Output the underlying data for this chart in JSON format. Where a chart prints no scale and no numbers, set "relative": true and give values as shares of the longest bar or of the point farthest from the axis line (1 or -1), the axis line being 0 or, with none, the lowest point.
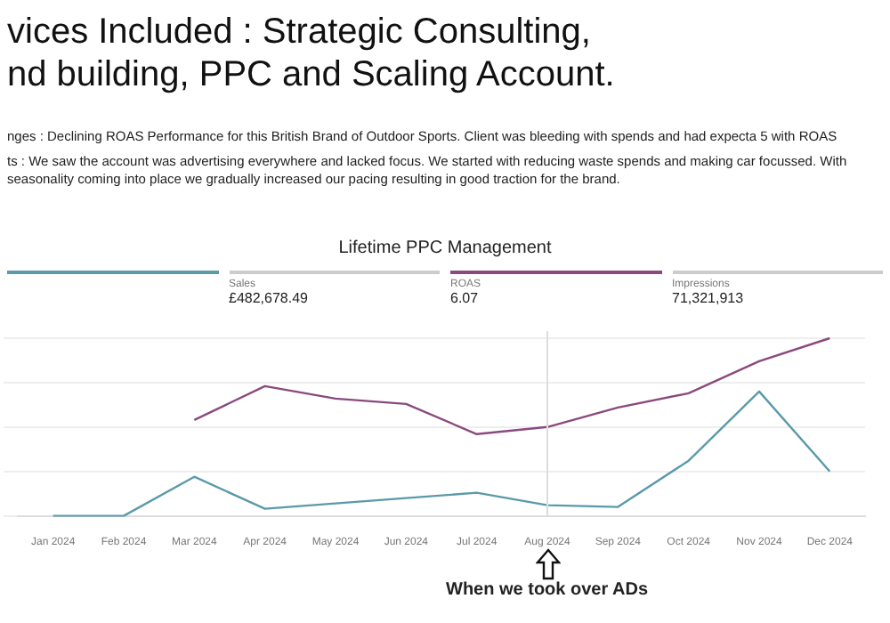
{
  "chart_data": {
    "type": "line",
    "title": "vices Included : Strategic Consulting,",
    "subtitle": "nd building, PPC and Scaling Account.",
    "annotations": [
      "nges : Declining ROAS Performance for this British Brand of Outdoor Sports. Client was bleeding with spends and had expecta 5 with ROAS",
      "ts : We saw the account was advertising everywhere and lacked focus. We started with reducing waste spends and making car focussed. With seasonality coming into place we gradually increased our pacing resulting in good traction for the brand.",
      "Lifetime PPC Management",
      "Sales",
      "£482,678.49",
      "ROAS",
      "6.07",
      "Impressions",
      "71,321,913",
      "When we took over ADs"
    ],
    "categories": [
      "Jan 2024",
      "Feb 2024",
      "Mar 2024",
      "Apr 2024",
      "May 2024",
      "Jun 2024",
      "Jul 2024",
      "Aug 2024",
      "Sep 2024",
      "Oct 2024",
      "Nov 2024",
      "Dec 2024"
    ],
    "relative": true,
    "series": [
      {
        "color": "#8a4a7e",
        "values": [
          null,
          null,
          0.54,
          0.73,
          0.66,
          0.63,
          0.46,
          0.5,
          0.61,
          0.69,
          0.87,
          1
        ]
      },
      {
        "color": "#5b9aa9",
        "values": [
          0,
          0,
          0.22,
          0.04,
          0.07,
          0.1,
          0.13,
          0.06,
          0.05,
          0.31,
          0.7,
          0.25
        ]
      }
    ],
    "ref_lines": [
      {
        "axis": "x",
        "value": "Aug 2024",
        "color": "#dddddd"
      }
    ],
    "grid": "y",
    "marker": "none",
    "line_style": "solid",
    "legend": false
  }
}
